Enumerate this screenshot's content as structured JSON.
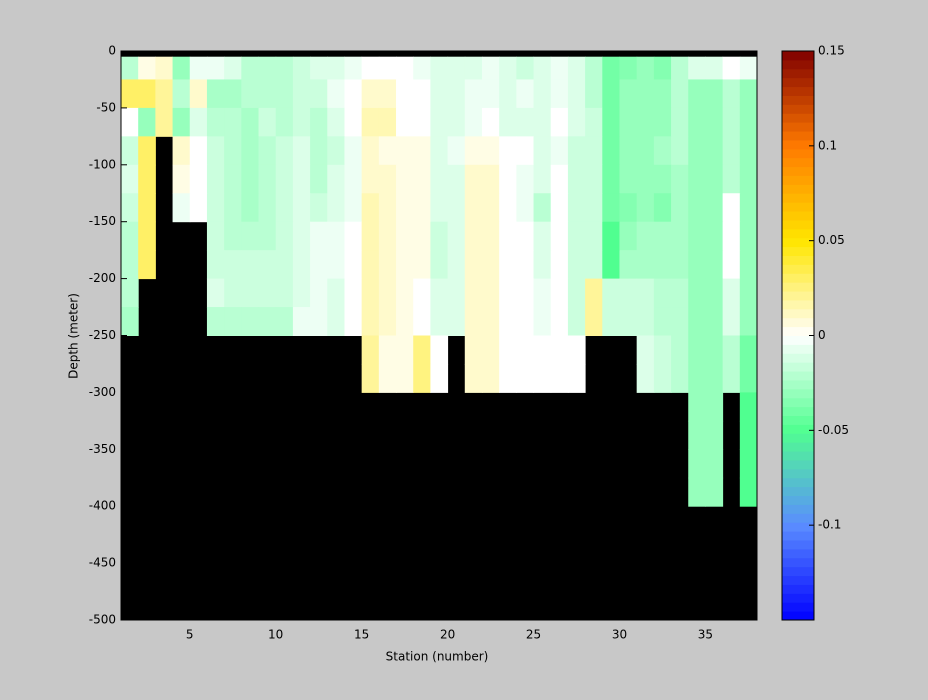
{
  "chart_data": {
    "type": "heatmap",
    "xlabel": "Station (number)",
    "ylabel": "Depth (meter)",
    "xlim": [
      1,
      38
    ],
    "ylim": [
      -500,
      0
    ],
    "xticks": [
      5,
      10,
      15,
      20,
      25,
      30,
      35
    ],
    "yticks": [
      0,
      -50,
      -100,
      -150,
      -200,
      -250,
      -300,
      -350,
      -400,
      -450,
      -500
    ],
    "x_edges": [
      1,
      2,
      3,
      4,
      5,
      6,
      7,
      8,
      9,
      10,
      11,
      12,
      13,
      14,
      15,
      16,
      17,
      18,
      19,
      20,
      21,
      22,
      23,
      24,
      25,
      26,
      27,
      28,
      29,
      30,
      31,
      32,
      33,
      34,
      35,
      36,
      37,
      38
    ],
    "y_edges": [
      0,
      -5,
      -25,
      -50,
      -75,
      -100,
      -125,
      -150,
      -175,
      -200,
      -225,
      -250,
      -275,
      -300,
      -325,
      -350,
      -375,
      -400
    ],
    "values": [
      [
        null,
        null,
        null,
        null,
        null,
        null,
        null,
        null,
        null,
        null,
        null,
        null,
        null,
        null,
        null,
        null,
        null,
        null,
        null,
        null,
        null,
        null,
        null,
        null,
        null,
        null,
        null,
        null,
        null,
        null,
        null,
        null,
        null,
        null,
        null,
        null,
        null
      ],
      [
        -0.02,
        0.005,
        0.01,
        -0.03,
        -0.005,
        -0.005,
        -0.01,
        -0.02,
        -0.02,
        -0.02,
        -0.015,
        -0.01,
        -0.01,
        -0.005,
        0,
        0,
        0,
        -0.005,
        -0.01,
        -0.01,
        -0.01,
        -0.005,
        -0.01,
        -0.015,
        -0.01,
        -0.005,
        -0.01,
        -0.02,
        -0.04,
        -0.035,
        -0.03,
        -0.035,
        -0.02,
        -0.01,
        -0.01,
        0,
        -0.005
      ],
      [
        0.03,
        0.03,
        0.02,
        -0.02,
        0.01,
        -0.025,
        -0.025,
        -0.02,
        -0.02,
        -0.02,
        -0.015,
        -0.015,
        -0.005,
        0,
        0.01,
        0.01,
        0,
        0,
        -0.01,
        -0.01,
        -0.005,
        -0.005,
        -0.01,
        -0.005,
        -0.01,
        -0.005,
        -0.01,
        -0.02,
        -0.04,
        -0.03,
        -0.03,
        -0.03,
        -0.02,
        -0.03,
        -0.03,
        -0.02,
        -0.03
      ],
      [
        0,
        -0.03,
        0.02,
        -0.03,
        -0.01,
        -0.02,
        -0.02,
        -0.025,
        -0.015,
        -0.02,
        -0.015,
        -0.02,
        -0.01,
        0,
        0.015,
        0.015,
        0,
        0,
        -0.01,
        -0.01,
        -0.005,
        0,
        -0.01,
        -0.01,
        -0.01,
        0,
        -0.01,
        -0.015,
        -0.04,
        -0.03,
        -0.03,
        -0.03,
        -0.02,
        -0.03,
        -0.03,
        -0.02,
        -0.03
      ],
      [
        -0.015,
        0.03,
        null,
        0.01,
        0,
        -0.015,
        -0.02,
        -0.025,
        -0.02,
        -0.015,
        -0.01,
        -0.02,
        -0.015,
        -0.005,
        0.01,
        0.005,
        0.005,
        0.005,
        -0.01,
        -0.005,
        0.005,
        0.005,
        0,
        0,
        -0.01,
        -0.005,
        -0.015,
        -0.015,
        -0.04,
        -0.03,
        -0.03,
        -0.025,
        -0.02,
        -0.03,
        -0.03,
        -0.02,
        -0.03
      ],
      [
        -0.01,
        0.03,
        null,
        0.005,
        0,
        -0.015,
        -0.02,
        -0.025,
        -0.02,
        -0.015,
        -0.01,
        -0.02,
        -0.01,
        -0.005,
        0.01,
        0.01,
        0.005,
        0.005,
        -0.01,
        -0.01,
        0.01,
        0.01,
        0,
        -0.005,
        -0.01,
        0,
        -0.015,
        -0.015,
        -0.04,
        -0.03,
        -0.03,
        -0.03,
        -0.025,
        -0.03,
        -0.03,
        -0.02,
        -0.03
      ],
      [
        -0.015,
        0.03,
        null,
        -0.005,
        0,
        -0.015,
        -0.02,
        -0.025,
        -0.02,
        -0.015,
        -0.01,
        -0.015,
        -0.01,
        -0.005,
        0.015,
        0.01,
        0.005,
        0.005,
        -0.01,
        -0.01,
        0.01,
        0.01,
        0,
        -0.005,
        -0.02,
        0,
        -0.015,
        -0.015,
        -0.04,
        -0.035,
        -0.03,
        -0.035,
        -0.025,
        -0.03,
        -0.03,
        0,
        -0.03
      ],
      [
        -0.02,
        0.03,
        null,
        null,
        null,
        -0.015,
        -0.02,
        -0.02,
        -0.02,
        -0.015,
        -0.01,
        -0.005,
        -0.005,
        0,
        0.015,
        0.01,
        0.005,
        0.005,
        -0.015,
        -0.01,
        0.01,
        0.01,
        0,
        0,
        -0.01,
        0,
        -0.015,
        -0.015,
        -0.05,
        -0.03,
        -0.025,
        -0.025,
        -0.025,
        -0.03,
        -0.03,
        0,
        -0.03
      ],
      [
        -0.02,
        0.03,
        null,
        null,
        null,
        -0.015,
        -0.015,
        -0.015,
        -0.015,
        -0.015,
        -0.01,
        -0.005,
        -0.005,
        0,
        0.015,
        0.01,
        0.005,
        0.005,
        -0.015,
        -0.01,
        0.01,
        0.01,
        0,
        0,
        -0.01,
        0,
        -0.015,
        -0.015,
        -0.05,
        -0.025,
        -0.025,
        -0.025,
        -0.025,
        -0.03,
        -0.03,
        0,
        -0.03
      ],
      [
        -0.02,
        null,
        null,
        null,
        null,
        -0.01,
        -0.015,
        -0.015,
        -0.015,
        -0.015,
        -0.01,
        -0.005,
        -0.01,
        0,
        0.015,
        0.01,
        0.005,
        0,
        -0.01,
        -0.01,
        0.01,
        0.01,
        0,
        0,
        -0.005,
        0,
        -0.015,
        0.02,
        -0.015,
        -0.015,
        -0.015,
        -0.02,
        -0.02,
        -0.03,
        -0.03,
        -0.01,
        -0.03
      ],
      [
        -0.025,
        null,
        null,
        null,
        null,
        -0.02,
        -0.02,
        -0.02,
        -0.02,
        -0.02,
        -0.005,
        -0.005,
        -0.01,
        0,
        0.015,
        0.01,
        0.005,
        0,
        -0.01,
        -0.01,
        0.01,
        0.01,
        0,
        0,
        -0.005,
        0,
        -0.015,
        0.02,
        -0.015,
        -0.015,
        -0.015,
        -0.02,
        -0.02,
        -0.03,
        -0.03,
        -0.01,
        -0.03
      ],
      [
        null,
        null,
        null,
        null,
        null,
        null,
        null,
        null,
        null,
        null,
        null,
        null,
        null,
        null,
        0.02,
        0.005,
        0.005,
        0.025,
        0,
        null,
        0.01,
        0.01,
        0,
        0,
        0,
        0,
        0,
        null,
        null,
        null,
        -0.01,
        -0.015,
        -0.02,
        -0.03,
        -0.03,
        -0.02,
        -0.04
      ],
      [
        null,
        null,
        null,
        null,
        null,
        null,
        null,
        null,
        null,
        null,
        null,
        null,
        null,
        null,
        0.02,
        0.005,
        0.005,
        0.025,
        0,
        null,
        0.01,
        0.01,
        0,
        0,
        0,
        0,
        0,
        null,
        null,
        null,
        -0.01,
        -0.015,
        -0.02,
        -0.03,
        -0.03,
        -0.02,
        -0.04
      ],
      [
        null,
        null,
        null,
        null,
        null,
        null,
        null,
        null,
        null,
        null,
        null,
        null,
        null,
        null,
        null,
        null,
        null,
        null,
        null,
        null,
        null,
        null,
        null,
        null,
        null,
        null,
        null,
        null,
        null,
        null,
        null,
        null,
        null,
        -0.03,
        -0.03,
        null,
        -0.05
      ],
      [
        null,
        null,
        null,
        null,
        null,
        null,
        null,
        null,
        null,
        null,
        null,
        null,
        null,
        null,
        null,
        null,
        null,
        null,
        null,
        null,
        null,
        null,
        null,
        null,
        null,
        null,
        null,
        null,
        null,
        null,
        null,
        null,
        null,
        -0.03,
        -0.03,
        null,
        -0.05
      ],
      [
        null,
        null,
        null,
        null,
        null,
        null,
        null,
        null,
        null,
        null,
        null,
        null,
        null,
        null,
        null,
        null,
        null,
        null,
        null,
        null,
        null,
        null,
        null,
        null,
        null,
        null,
        null,
        null,
        null,
        null,
        null,
        null,
        null,
        -0.03,
        -0.03,
        null,
        -0.05
      ],
      [
        null,
        null,
        null,
        null,
        null,
        null,
        null,
        null,
        null,
        null,
        null,
        null,
        null,
        null,
        null,
        null,
        null,
        null,
        null,
        null,
        null,
        null,
        null,
        null,
        null,
        null,
        null,
        null,
        null,
        null,
        null,
        null,
        null,
        -0.03,
        -0.03,
        null,
        -0.05
      ]
    ],
    "clim": [
      -0.15,
      0.15
    ],
    "cticks": [
      -0.1,
      -0.05,
      0,
      0.05,
      0.1,
      0.15
    ],
    "colormap": [
      "#0000ff",
      "#5a8cff",
      "#50ff90",
      "#ffffff",
      "#ffe600",
      "#ff7a00",
      "#800000"
    ],
    "nan_color": "#000000"
  }
}
